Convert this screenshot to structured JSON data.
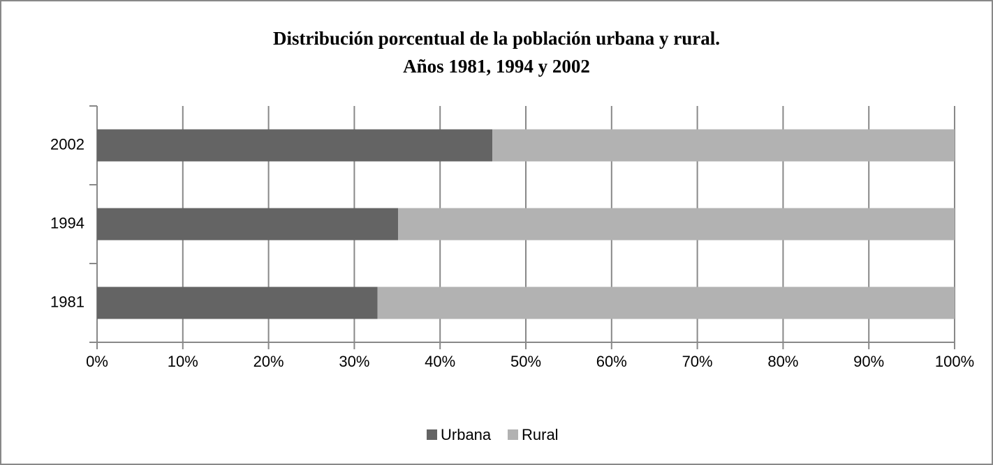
{
  "chart_data": {
    "type": "stacked-bar-horizontal",
    "title": [
      "Distribución porcentual de la población urbana y rural.",
      "Años 1981, 1994 y 2002"
    ],
    "categories": [
      "2002",
      "1994",
      "1981"
    ],
    "series": [
      {
        "name": "Urbana",
        "color": "#646464",
        "values": [
          46.1,
          35.1,
          32.7
        ]
      },
      {
        "name": "Rural",
        "color": "#b2b2b2",
        "values": [
          53.9,
          64.9,
          67.3
        ]
      }
    ],
    "xlim": [
      0,
      100
    ],
    "xticks": [
      {
        "value": 0,
        "label": "0%"
      },
      {
        "value": 10,
        "label": "10%"
      },
      {
        "value": 20,
        "label": "20%"
      },
      {
        "value": 30,
        "label": "30%"
      },
      {
        "value": 40,
        "label": "40%"
      },
      {
        "value": 50,
        "label": "50%"
      },
      {
        "value": 60,
        "label": "60%"
      },
      {
        "value": 70,
        "label": "70%"
      },
      {
        "value": 80,
        "label": "80%"
      },
      {
        "value": 90,
        "label": "90%"
      },
      {
        "value": 100,
        "label": "100%"
      }
    ],
    "grid": true,
    "legend": "bottom"
  }
}
